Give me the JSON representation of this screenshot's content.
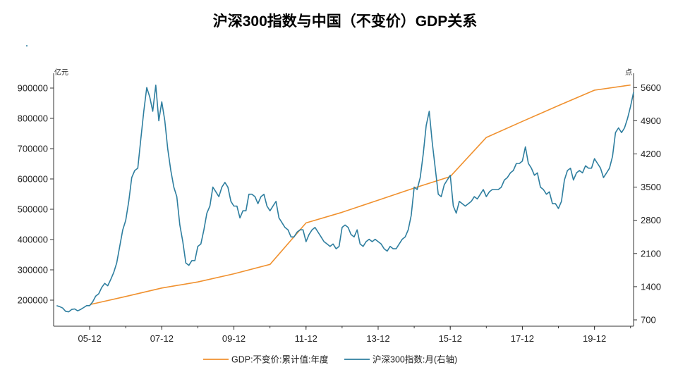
{
  "chart_data": {
    "type": "line",
    "title": "沪深300指数与中国（不变价）GDP关系",
    "left_unit": "亿元",
    "right_unit": "点",
    "x_tick_labels": [
      "05-12",
      "07-12",
      "09-12",
      "11-12",
      "13-12",
      "15-12",
      "17-12",
      "19-12"
    ],
    "y_left_ticks": [
      "900000",
      "800000",
      "700000",
      "600000",
      "500000",
      "400000",
      "300000",
      "200000"
    ],
    "y_right_ticks": [
      "5600",
      "4900",
      "4200",
      "3500",
      "2800",
      "2100",
      "1400",
      "700"
    ],
    "ylim_left": [
      150000,
      950000
    ],
    "ylim_right": [
      700,
      5800
    ],
    "xlim": [
      "2004-12",
      "2021-01"
    ],
    "series": [
      {
        "name": "GDP:不变价:累计值:年度",
        "axis": "left",
        "color": "#F0912F",
        "points": [
          [
            "2005-12",
            185000
          ],
          [
            "2006-12",
            212000
          ],
          [
            "2007-12",
            240000
          ],
          [
            "2008-12",
            260000
          ],
          [
            "2009-12",
            287000
          ],
          [
            "2010-12",
            318000
          ],
          [
            "2011-12",
            455000
          ],
          [
            "2012-12",
            490000
          ],
          [
            "2013-12",
            530000
          ],
          [
            "2014-12",
            570000
          ],
          [
            "2015-12",
            608000
          ],
          [
            "2016-12",
            737000
          ],
          [
            "2017-12",
            790000
          ],
          [
            "2018-12",
            842000
          ],
          [
            "2019-12",
            893000
          ],
          [
            "2020-12",
            910000
          ]
        ]
      },
      {
        "name": "沪深300指数:月(右轴)",
        "axis": "right",
        "color": "#2E7E9F",
        "points": [
          [
            "2005-01",
            1000
          ],
          [
            "2005-02",
            980
          ],
          [
            "2005-03",
            950
          ],
          [
            "2005-04",
            880
          ],
          [
            "2005-05",
            870
          ],
          [
            "2005-06",
            920
          ],
          [
            "2005-07",
            930
          ],
          [
            "2005-08",
            890
          ],
          [
            "2005-09",
            920
          ],
          [
            "2005-10",
            960
          ],
          [
            "2005-11",
            1000
          ],
          [
            "2005-12",
            1000
          ],
          [
            "2006-01",
            1080
          ],
          [
            "2006-02",
            1200
          ],
          [
            "2006-03",
            1250
          ],
          [
            "2006-04",
            1380
          ],
          [
            "2006-05",
            1470
          ],
          [
            "2006-06",
            1420
          ],
          [
            "2006-07",
            1550
          ],
          [
            "2006-08",
            1700
          ],
          [
            "2006-09",
            1900
          ],
          [
            "2006-10",
            2250
          ],
          [
            "2006-11",
            2600
          ],
          [
            "2006-12",
            2800
          ],
          [
            "2007-01",
            3200
          ],
          [
            "2007-02",
            3700
          ],
          [
            "2007-03",
            3850
          ],
          [
            "2007-04",
            3900
          ],
          [
            "2007-05",
            4500
          ],
          [
            "2007-06",
            5100
          ],
          [
            "2007-07",
            5600
          ],
          [
            "2007-08",
            5400
          ],
          [
            "2007-09",
            5100
          ],
          [
            "2007-10",
            5650
          ],
          [
            "2007-11",
            4900
          ],
          [
            "2007-12",
            5300
          ],
          [
            "2008-01",
            4900
          ],
          [
            "2008-02",
            4300
          ],
          [
            "2008-03",
            3850
          ],
          [
            "2008-04",
            3500
          ],
          [
            "2008-05",
            3300
          ],
          [
            "2008-06",
            2700
          ],
          [
            "2008-07",
            2350
          ],
          [
            "2008-08",
            1900
          ],
          [
            "2008-09",
            1850
          ],
          [
            "2008-10",
            1950
          ],
          [
            "2008-11",
            1950
          ],
          [
            "2008-12",
            2250
          ],
          [
            "2009-01",
            2300
          ],
          [
            "2009-02",
            2600
          ],
          [
            "2009-03",
            2950
          ],
          [
            "2009-04",
            3100
          ],
          [
            "2009-05",
            3500
          ],
          [
            "2009-06",
            3400
          ],
          [
            "2009-07",
            3300
          ],
          [
            "2009-08",
            3500
          ],
          [
            "2009-09",
            3600
          ],
          [
            "2009-10",
            3500
          ],
          [
            "2009-11",
            3200
          ],
          [
            "2009-12",
            3100
          ],
          [
            "2010-01",
            3100
          ],
          [
            "2010-02",
            2850
          ],
          [
            "2010-03",
            3000
          ],
          [
            "2010-04",
            3000
          ],
          [
            "2010-05",
            3350
          ],
          [
            "2010-06",
            3350
          ],
          [
            "2010-07",
            3300
          ],
          [
            "2010-08",
            3150
          ],
          [
            "2010-09",
            3300
          ],
          [
            "2010-10",
            3350
          ],
          [
            "2010-11",
            3100
          ],
          [
            "2010-12",
            3000
          ],
          [
            "2011-01",
            3100
          ],
          [
            "2011-02",
            3200
          ],
          [
            "2011-03",
            2850
          ],
          [
            "2011-04",
            2750
          ],
          [
            "2011-05",
            2650
          ],
          [
            "2011-06",
            2600
          ],
          [
            "2011-07",
            2450
          ],
          [
            "2011-08",
            2450
          ],
          [
            "2011-09",
            2550
          ],
          [
            "2011-10",
            2600
          ],
          [
            "2011-11",
            2600
          ],
          [
            "2011-12",
            2350
          ],
          [
            "2012-01",
            2500
          ],
          [
            "2012-02",
            2600
          ],
          [
            "2012-03",
            2650
          ],
          [
            "2012-04",
            2550
          ],
          [
            "2012-05",
            2450
          ],
          [
            "2012-06",
            2350
          ],
          [
            "2012-07",
            2300
          ],
          [
            "2012-08",
            2250
          ],
          [
            "2012-09",
            2300
          ],
          [
            "2012-10",
            2200
          ],
          [
            "2012-11",
            2250
          ],
          [
            "2012-12",
            2650
          ],
          [
            "2013-01",
            2700
          ],
          [
            "2013-02",
            2650
          ],
          [
            "2013-03",
            2500
          ],
          [
            "2013-04",
            2450
          ],
          [
            "2013-05",
            2600
          ],
          [
            "2013-06",
            2300
          ],
          [
            "2013-07",
            2250
          ],
          [
            "2013-08",
            2350
          ],
          [
            "2013-09",
            2400
          ],
          [
            "2013-10",
            2350
          ],
          [
            "2013-11",
            2400
          ],
          [
            "2013-12",
            2350
          ],
          [
            "2014-01",
            2300
          ],
          [
            "2014-02",
            2200
          ],
          [
            "2014-03",
            2150
          ],
          [
            "2014-04",
            2250
          ],
          [
            "2014-05",
            2200
          ],
          [
            "2014-06",
            2200
          ],
          [
            "2014-07",
            2300
          ],
          [
            "2014-08",
            2400
          ],
          [
            "2014-09",
            2450
          ],
          [
            "2014-10",
            2600
          ],
          [
            "2014-11",
            2900
          ],
          [
            "2014-12",
            3500
          ],
          [
            "2015-01",
            3450
          ],
          [
            "2015-02",
            3700
          ],
          [
            "2015-03",
            4200
          ],
          [
            "2015-04",
            4800
          ],
          [
            "2015-05",
            5100
          ],
          [
            "2015-06",
            4450
          ],
          [
            "2015-07",
            3900
          ],
          [
            "2015-08",
            3350
          ],
          [
            "2015-09",
            3300
          ],
          [
            "2015-10",
            3550
          ],
          [
            "2015-11",
            3650
          ],
          [
            "2015-12",
            3750
          ],
          [
            "2016-01",
            3100
          ],
          [
            "2016-02",
            2950
          ],
          [
            "2016-03",
            3200
          ],
          [
            "2016-04",
            3150
          ],
          [
            "2016-05",
            3100
          ],
          [
            "2016-06",
            3150
          ],
          [
            "2016-07",
            3200
          ],
          [
            "2016-08",
            3300
          ],
          [
            "2016-09",
            3250
          ],
          [
            "2016-10",
            3350
          ],
          [
            "2016-11",
            3450
          ],
          [
            "2016-12",
            3300
          ],
          [
            "2017-01",
            3400
          ],
          [
            "2017-02",
            3450
          ],
          [
            "2017-03",
            3450
          ],
          [
            "2017-04",
            3450
          ],
          [
            "2017-05",
            3500
          ],
          [
            "2017-06",
            3650
          ],
          [
            "2017-07",
            3700
          ],
          [
            "2017-08",
            3800
          ],
          [
            "2017-09",
            3850
          ],
          [
            "2017-10",
            4000
          ],
          [
            "2017-11",
            4000
          ],
          [
            "2017-12",
            4050
          ],
          [
            "2018-01",
            4350
          ],
          [
            "2018-02",
            4000
          ],
          [
            "2018-03",
            3900
          ],
          [
            "2018-04",
            3750
          ],
          [
            "2018-05",
            3800
          ],
          [
            "2018-06",
            3500
          ],
          [
            "2018-07",
            3450
          ],
          [
            "2018-08",
            3350
          ],
          [
            "2018-09",
            3400
          ],
          [
            "2018-10",
            3150
          ],
          [
            "2018-11",
            3150
          ],
          [
            "2018-12",
            3050
          ],
          [
            "2019-01",
            3200
          ],
          [
            "2019-02",
            3650
          ],
          [
            "2019-03",
            3850
          ],
          [
            "2019-04",
            3900
          ],
          [
            "2019-05",
            3650
          ],
          [
            "2019-06",
            3800
          ],
          [
            "2019-07",
            3850
          ],
          [
            "2019-08",
            3800
          ],
          [
            "2019-09",
            3950
          ],
          [
            "2019-10",
            3900
          ],
          [
            "2019-11",
            3900
          ],
          [
            "2019-12",
            4100
          ],
          [
            "2020-01",
            4000
          ],
          [
            "2020-02",
            3900
          ],
          [
            "2020-03",
            3700
          ],
          [
            "2020-04",
            3800
          ],
          [
            "2020-05",
            3900
          ],
          [
            "2020-06",
            4150
          ],
          [
            "2020-07",
            4650
          ],
          [
            "2020-08",
            4750
          ],
          [
            "2020-09",
            4650
          ],
          [
            "2020-10",
            4750
          ],
          [
            "2020-11",
            4950
          ],
          [
            "2020-12",
            5200
          ],
          [
            "2021-01",
            5500
          ]
        ]
      }
    ],
    "legend_position": "bottom",
    "grid": false
  }
}
